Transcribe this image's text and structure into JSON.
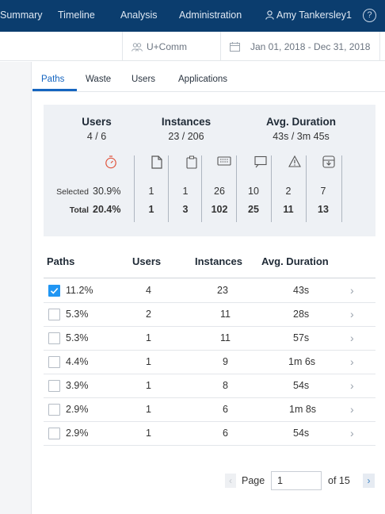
{
  "nav": {
    "items": [
      "Summary",
      "Timeline",
      "Analysis",
      "Administration"
    ],
    "user": "Amy Tankersley1",
    "help": "?"
  },
  "filters": {
    "group": "U+Comm",
    "date_range": "Jan 01, 2018 - Dec 31, 2018"
  },
  "tabs": [
    "Paths",
    "Waste",
    "Users",
    "Applications"
  ],
  "summary": {
    "users_label": "Users",
    "users_value": "4 / 6",
    "instances_label": "Instances",
    "instances_value": "23 / 206",
    "duration_label": "Avg. Duration",
    "duration_value": "43s / 3m 45s",
    "selected_label": "Selected",
    "total_label": "Total",
    "selected_pct": "30.9%",
    "total_pct": "20.4%",
    "icons": [
      "document-icon",
      "clipboard-icon",
      "keyboard-icon",
      "screen-icon",
      "warning-icon",
      "download-icon"
    ],
    "selected_counts": [
      "1",
      "1",
      "26",
      "10",
      "2",
      "7"
    ],
    "total_counts": [
      "1",
      "3",
      "102",
      "25",
      "11",
      "13"
    ]
  },
  "table": {
    "headers": [
      "Paths",
      "Users",
      "Instances",
      "Avg. Duration"
    ],
    "rows": [
      {
        "path": "11.2%",
        "users": "4",
        "instances": "23",
        "duration": "43s",
        "checked": true
      },
      {
        "path": "5.3%",
        "users": "2",
        "instances": "11",
        "duration": "28s",
        "checked": false
      },
      {
        "path": "5.3%",
        "users": "1",
        "instances": "11",
        "duration": "57s",
        "checked": false
      },
      {
        "path": "4.4%",
        "users": "1",
        "instances": "9",
        "duration": "1m 6s",
        "checked": false
      },
      {
        "path": "3.9%",
        "users": "1",
        "instances": "8",
        "duration": "54s",
        "checked": false
      },
      {
        "path": "2.9%",
        "users": "1",
        "instances": "6",
        "duration": "1m 8s",
        "checked": false
      },
      {
        "path": "2.9%",
        "users": "1",
        "instances": "6",
        "duration": "54s",
        "checked": false
      }
    ]
  },
  "pagination": {
    "label": "Page",
    "current": "1",
    "of_label": "of 15"
  },
  "colors": {
    "nav_bg": "#0b3d6e",
    "accent": "#1565c0",
    "checkbox": "#2196f3",
    "timer_icon": "#e0533b"
  }
}
